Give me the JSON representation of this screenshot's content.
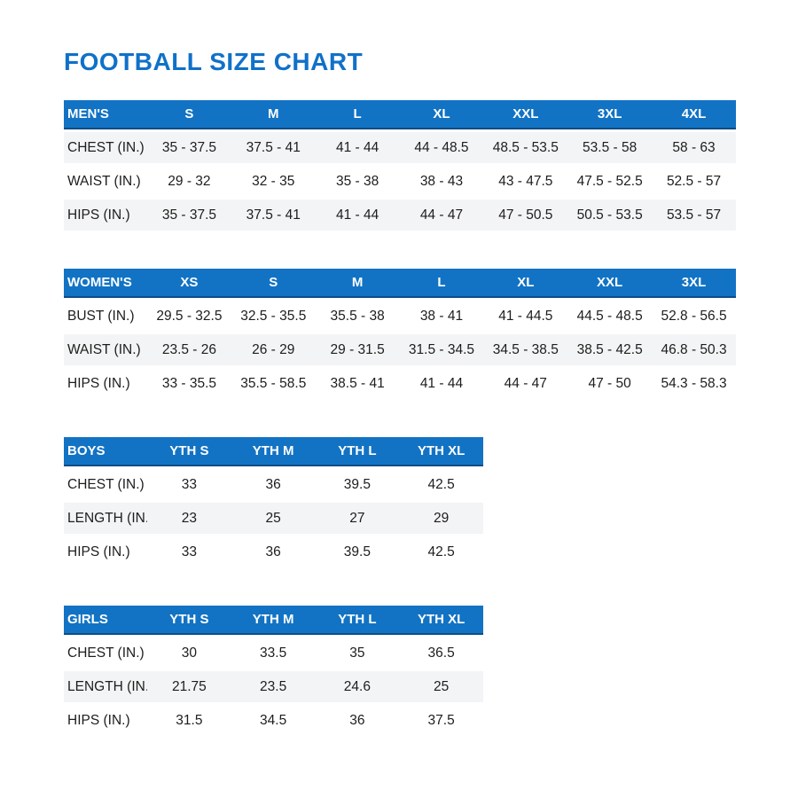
{
  "title": "FOOTBALL SIZE CHART",
  "colors": {
    "header_background": "#1273c4",
    "header_text": "#ffffff",
    "title_text": "#1071c9",
    "striped_row_background": "#f3f4f5",
    "body_text": "#1d1d1d"
  },
  "tables": [
    {
      "id": "mens",
      "label": "MEN'S",
      "columns": [
        "S",
        "M",
        "L",
        "XL",
        "XXL",
        "3XL",
        "4XL"
      ],
      "stripe_first_row": true,
      "rows": [
        {
          "label": "CHEST (IN.)",
          "values": [
            "35 - 37.5",
            "37.5 - 41",
            "41 - 44",
            "44 - 48.5",
            "48.5 - 53.5",
            "53.5 - 58",
            "58 - 63"
          ]
        },
        {
          "label": "WAIST (IN.)",
          "values": [
            "29 - 32",
            "32 - 35",
            "35 - 38",
            "38 - 43",
            "43 - 47.5",
            "47.5 - 52.5",
            "52.5 - 57"
          ]
        },
        {
          "label": "HIPS (IN.)",
          "values": [
            "35 - 37.5",
            "37.5 - 41",
            "41 - 44",
            "44 - 47",
            "47 - 50.5",
            "50.5 - 53.5",
            "53.5 - 57"
          ]
        }
      ]
    },
    {
      "id": "womens",
      "label": "WOMEN'S",
      "columns": [
        "XS",
        "S",
        "M",
        "L",
        "XL",
        "XXL",
        "3XL"
      ],
      "stripe_first_row": false,
      "rows": [
        {
          "label": "BUST (IN.)",
          "values": [
            "29.5 - 32.5",
            "32.5 - 35.5",
            "35.5 - 38",
            "38 - 41",
            "41 - 44.5",
            "44.5 - 48.5",
            "52.8 - 56.5"
          ]
        },
        {
          "label": "WAIST (IN.)",
          "values": [
            "23.5 - 26",
            "26 - 29",
            "29 - 31.5",
            "31.5 - 34.5",
            "34.5 - 38.5",
            "38.5 - 42.5",
            "46.8 - 50.3"
          ]
        },
        {
          "label": "HIPS (IN.)",
          "values": [
            "33 - 35.5",
            "35.5 - 58.5",
            "38.5 - 41",
            "41 - 44",
            "44 - 47",
            "47 - 50",
            "54.3 - 58.3"
          ]
        }
      ]
    },
    {
      "id": "boys",
      "label": "BOYS",
      "columns": [
        "YTH S",
        "YTH M",
        "YTH L",
        "YTH XL"
      ],
      "stripe_first_row": false,
      "rows": [
        {
          "label": "CHEST (IN.)",
          "values": [
            "33",
            "36",
            "39.5",
            "42.5"
          ]
        },
        {
          "label": "LENGTH (IN.)",
          "values": [
            "23",
            "25",
            "27",
            "29"
          ]
        },
        {
          "label": "HIPS (IN.)",
          "values": [
            "33",
            "36",
            "39.5",
            "42.5"
          ]
        }
      ]
    },
    {
      "id": "girls",
      "label": "GIRLS",
      "columns": [
        "YTH S",
        "YTH M",
        "YTH L",
        "YTH XL"
      ],
      "stripe_first_row": false,
      "rows": [
        {
          "label": "CHEST (IN.)",
          "values": [
            "30",
            "33.5",
            "35",
            "36.5"
          ]
        },
        {
          "label": "LENGTH (IN.)",
          "values": [
            "21.75",
            "23.5",
            "24.6",
            "25"
          ]
        },
        {
          "label": "HIPS (IN.)",
          "values": [
            "31.5",
            "34.5",
            "36",
            "37.5"
          ]
        }
      ]
    }
  ]
}
